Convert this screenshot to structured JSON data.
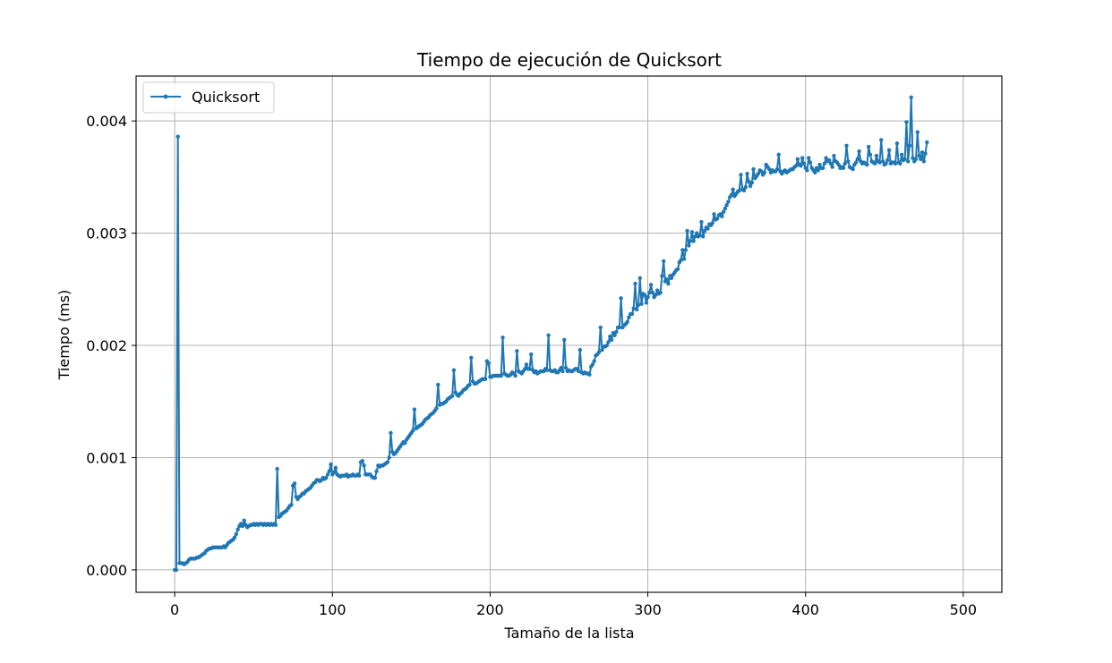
{
  "chart_data": {
    "type": "line",
    "title": "Tiempo de ejecución de Quicksort",
    "xlabel": "Tamaño de la lista",
    "ylabel": "Tiempo (ms)",
    "xlim": [
      -24.5,
      524.5
    ],
    "ylim": [
      -0.0002,
      0.0044
    ],
    "xticks": [
      0,
      100,
      200,
      300,
      400,
      500
    ],
    "xtick_labels": [
      "0",
      "100",
      "200",
      "300",
      "400",
      "500"
    ],
    "yticks": [
      0.0,
      0.001,
      0.002,
      0.003,
      0.004
    ],
    "ytick_labels": [
      "0.000",
      "0.001",
      "0.002",
      "0.003",
      "0.004"
    ],
    "grid": true,
    "legend_position": "upper-left",
    "color": "#1f77b4",
    "series": [
      {
        "name": "Quicksort",
        "x_start": 0,
        "x_step": 1,
        "values": [
          0.0,
          0.0,
          0.00386,
          6e-05,
          6e-05,
          6e-05,
          5e-05,
          6e-05,
          7e-05,
          9e-05,
          0.0001,
          0.0001,
          0.0001,
          0.0001,
          0.00011,
          0.00011,
          0.00012,
          0.00013,
          0.00014,
          0.00015,
          0.00017,
          0.00018,
          0.00019,
          0.00019,
          0.0002,
          0.0002,
          0.0002,
          0.0002,
          0.0002,
          0.0002,
          0.0002,
          0.00021,
          0.0002,
          0.00022,
          0.00024,
          0.00025,
          0.00026,
          0.00027,
          0.00029,
          0.00032,
          0.00036,
          0.00039,
          0.00041,
          0.00039,
          0.00044,
          0.0004,
          0.00038,
          0.00039,
          0.0004,
          0.0004,
          0.00041,
          0.0004,
          0.00041,
          0.0004,
          0.00041,
          0.00041,
          0.0004,
          0.00041,
          0.0004,
          0.00041,
          0.0004,
          0.00041,
          0.0004,
          0.00041,
          0.0004,
          0.0009,
          0.00047,
          0.00048,
          0.0005,
          0.00051,
          0.00052,
          0.00053,
          0.00055,
          0.00057,
          0.00058,
          0.00075,
          0.00077,
          0.00065,
          0.00063,
          0.00065,
          0.00066,
          0.00068,
          0.00068,
          0.0007,
          0.00071,
          0.00072,
          0.00073,
          0.00075,
          0.00077,
          0.00078,
          0.0008,
          0.0008,
          0.00079,
          0.0008,
          0.00082,
          0.00081,
          0.00082,
          0.00085,
          0.00088,
          0.00094,
          0.00085,
          0.00087,
          0.00091,
          0.00085,
          0.00084,
          0.00083,
          0.00084,
          0.00084,
          0.00084,
          0.00085,
          0.00083,
          0.00084,
          0.00084,
          0.00085,
          0.00084,
          0.00084,
          0.00085,
          0.00084,
          0.00096,
          0.00097,
          0.00093,
          0.00085,
          0.00085,
          0.00085,
          0.00085,
          0.00083,
          0.00082,
          0.00082,
          0.00088,
          0.00093,
          0.00092,
          0.00093,
          0.00093,
          0.00094,
          0.00095,
          0.00096,
          0.001,
          0.00122,
          0.00105,
          0.00103,
          0.00104,
          0.00106,
          0.00108,
          0.0011,
          0.00112,
          0.00114,
          0.00113,
          0.00116,
          0.00118,
          0.0012,
          0.00122,
          0.00124,
          0.00143,
          0.00126,
          0.00127,
          0.00128,
          0.00129,
          0.0013,
          0.00132,
          0.00134,
          0.00135,
          0.00136,
          0.00138,
          0.00139,
          0.0014,
          0.00142,
          0.00144,
          0.00165,
          0.00147,
          0.00148,
          0.00148,
          0.00149,
          0.0015,
          0.00152,
          0.00153,
          0.00154,
          0.00155,
          0.00178,
          0.00158,
          0.00156,
          0.00155,
          0.00157,
          0.00158,
          0.0016,
          0.00161,
          0.00162,
          0.00164,
          0.00165,
          0.00189,
          0.00168,
          0.00166,
          0.00166,
          0.00167,
          0.00168,
          0.00169,
          0.0017,
          0.0017,
          0.0017,
          0.00186,
          0.00184,
          0.00172,
          0.00172,
          0.00173,
          0.00173,
          0.00173,
          0.00173,
          0.00173,
          0.00173,
          0.00207,
          0.00175,
          0.00174,
          0.00173,
          0.00173,
          0.00174,
          0.00176,
          0.00175,
          0.00173,
          0.00195,
          0.00177,
          0.00176,
          0.00175,
          0.00177,
          0.00179,
          0.00183,
          0.00179,
          0.00179,
          0.00192,
          0.00178,
          0.00176,
          0.00177,
          0.00175,
          0.00176,
          0.00177,
          0.00177,
          0.00177,
          0.00179,
          0.00178,
          0.00209,
          0.00178,
          0.00177,
          0.00177,
          0.00178,
          0.00176,
          0.00176,
          0.00178,
          0.0018,
          0.00177,
          0.00205,
          0.0018,
          0.00177,
          0.00178,
          0.00177,
          0.00177,
          0.00178,
          0.00179,
          0.00179,
          0.00177,
          0.00196,
          0.00176,
          0.00175,
          0.00176,
          0.00175,
          0.00175,
          0.00174,
          0.00181,
          0.00183,
          0.00186,
          0.00191,
          0.00192,
          0.00194,
          0.00216,
          0.00196,
          0.00199,
          0.00199,
          0.002,
          0.00203,
          0.00208,
          0.00205,
          0.00211,
          0.00209,
          0.00212,
          0.00216,
          0.00216,
          0.00242,
          0.00216,
          0.00218,
          0.00219,
          0.00221,
          0.00225,
          0.00228,
          0.00228,
          0.00233,
          0.00255,
          0.00232,
          0.00236,
          0.0026,
          0.00237,
          0.00246,
          0.00245,
          0.00238,
          0.00243,
          0.00247,
          0.00254,
          0.00247,
          0.00243,
          0.00245,
          0.00249,
          0.00246,
          0.00247,
          0.00262,
          0.00275,
          0.00257,
          0.00259,
          0.00255,
          0.00262,
          0.0026,
          0.00263,
          0.00265,
          0.00267,
          0.00268,
          0.00274,
          0.00276,
          0.00285,
          0.00277,
          0.00285,
          0.00302,
          0.00289,
          0.00293,
          0.00301,
          0.00293,
          0.00297,
          0.003,
          0.00297,
          0.00298,
          0.0031,
          0.00297,
          0.00302,
          0.00305,
          0.00304,
          0.00308,
          0.00307,
          0.00309,
          0.00317,
          0.00312,
          0.00313,
          0.00316,
          0.00317,
          0.00315,
          0.00319,
          0.00322,
          0.00325,
          0.00328,
          0.00332,
          0.00334,
          0.00339,
          0.00333,
          0.00335,
          0.00337,
          0.00338,
          0.00352,
          0.00339,
          0.00338,
          0.00341,
          0.00353,
          0.00346,
          0.00342,
          0.00345,
          0.00357,
          0.00349,
          0.00351,
          0.00353,
          0.00356,
          0.00355,
          0.00352,
          0.00354,
          0.00361,
          0.00359,
          0.00357,
          0.00354,
          0.00356,
          0.00355,
          0.00355,
          0.00357,
          0.0037,
          0.00355,
          0.00353,
          0.00355,
          0.00356,
          0.00354,
          0.00355,
          0.00356,
          0.00357,
          0.00357,
          0.00359,
          0.0036,
          0.00366,
          0.00361,
          0.0036,
          0.00367,
          0.00362,
          0.00358,
          0.00356,
          0.00367,
          0.00363,
          0.00358,
          0.00356,
          0.00354,
          0.00358,
          0.00356,
          0.00361,
          0.00358,
          0.00358,
          0.00362,
          0.00367,
          0.00364,
          0.00365,
          0.00362,
          0.00359,
          0.00369,
          0.00364,
          0.00363,
          0.00361,
          0.00358,
          0.00359,
          0.00358,
          0.00362,
          0.00378,
          0.00364,
          0.00359,
          0.00358,
          0.00357,
          0.00361,
          0.00363,
          0.00366,
          0.00373,
          0.00364,
          0.00362,
          0.00363,
          0.00362,
          0.00361,
          0.00377,
          0.0037,
          0.00364,
          0.00363,
          0.00362,
          0.00369,
          0.00364,
          0.00363,
          0.00383,
          0.00364,
          0.00361,
          0.00362,
          0.00365,
          0.00374,
          0.00362,
          0.00363,
          0.00363,
          0.00362,
          0.0038,
          0.00363,
          0.00362,
          0.0037,
          0.00365,
          0.00366,
          0.00399,
          0.00364,
          0.00378,
          0.00421,
          0.00367,
          0.00364,
          0.00366,
          0.0039,
          0.00369,
          0.00366,
          0.00372,
          0.00364,
          0.00371,
          0.00381
        ]
      }
    ]
  }
}
